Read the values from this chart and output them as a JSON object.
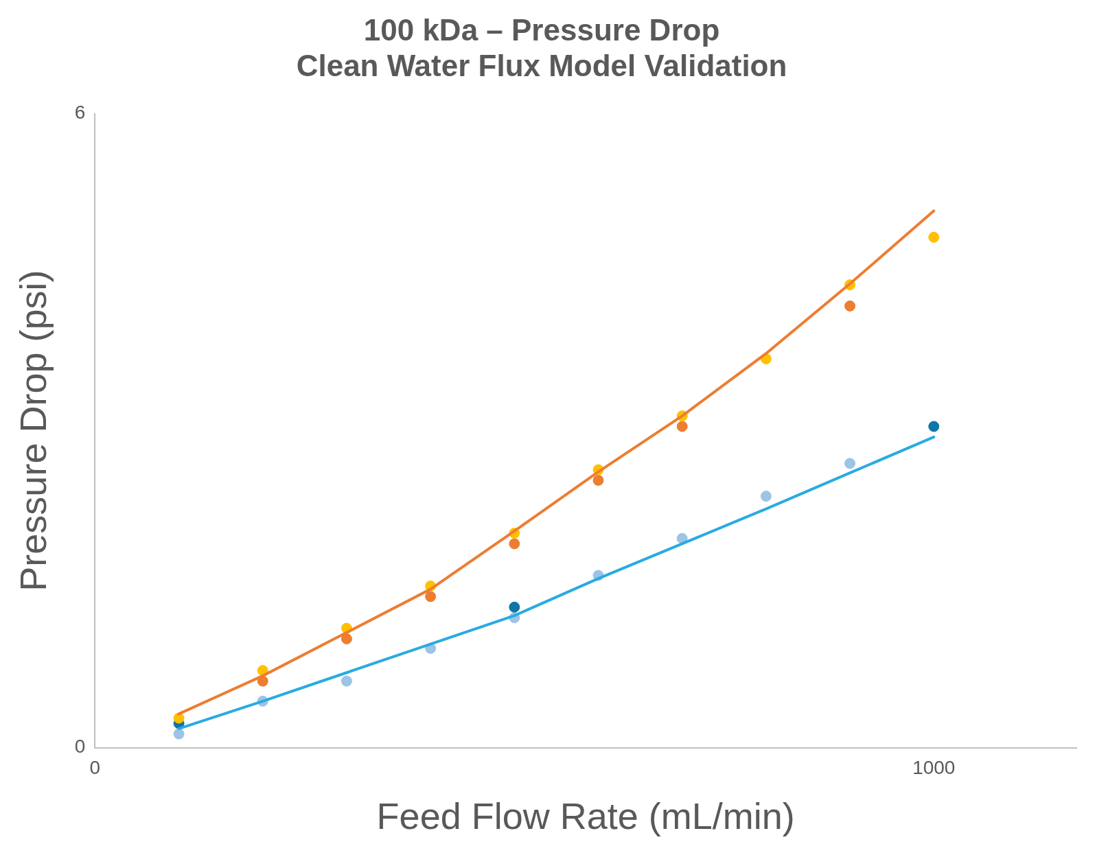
{
  "chart_data": {
    "type": "scatter",
    "title": "100 kDa – Pressure Drop\nClean Water Flux Model Validation",
    "xlabel": "Feed Flow Rate (mL/min)",
    "ylabel": "Pressure Drop (psi)",
    "xlim": [
      0,
      1170
    ],
    "xticks": [
      0,
      1000
    ],
    "ylim": [
      0,
      6
    ],
    "yticks": [
      0,
      6
    ],
    "grid": false,
    "legend": false,
    "marker": "circle",
    "series": [
      {
        "type": "line",
        "color": "#ed7d31",
        "marker": "none",
        "line_style": "solid",
        "x": [
          100,
          200,
          300,
          400,
          500,
          600,
          700,
          800,
          900,
          1000
        ],
        "values": [
          0.32,
          0.68,
          1.09,
          1.5,
          2.05,
          2.61,
          3.14,
          3.73,
          4.39,
          5.08
        ]
      },
      {
        "type": "line",
        "color": "#29abe2",
        "marker": "none",
        "line_style": "solid",
        "x": [
          100,
          200,
          300,
          400,
          500,
          600,
          700,
          800,
          900,
          1000
        ],
        "values": [
          0.18,
          0.44,
          0.71,
          0.98,
          1.25,
          1.6,
          1.93,
          2.26,
          2.6,
          2.94
        ]
      },
      {
        "color": "#9dc3e6",
        "x": [
          100,
          200,
          300,
          400,
          500,
          600,
          700,
          800,
          900
        ],
        "values": [
          0.13,
          0.44,
          0.63,
          0.94,
          1.23,
          1.63,
          1.98,
          2.38,
          2.69
        ]
      },
      {
        "color": "#0e76a8",
        "x": [
          100,
          500,
          1000
        ],
        "values": [
          0.23,
          1.33,
          3.04
        ]
      },
      {
        "color": "#ed7d31",
        "x": [
          200,
          300,
          400,
          500,
          600,
          700,
          900
        ],
        "values": [
          0.63,
          1.03,
          1.43,
          1.93,
          2.53,
          3.04,
          4.18
        ]
      },
      {
        "color": "#ffc000",
        "x": [
          100,
          200,
          300,
          400,
          500,
          600,
          700,
          800,
          900,
          1000
        ],
        "values": [
          0.28,
          0.73,
          1.13,
          1.53,
          2.03,
          2.63,
          3.14,
          3.68,
          4.38,
          4.83
        ]
      }
    ]
  }
}
